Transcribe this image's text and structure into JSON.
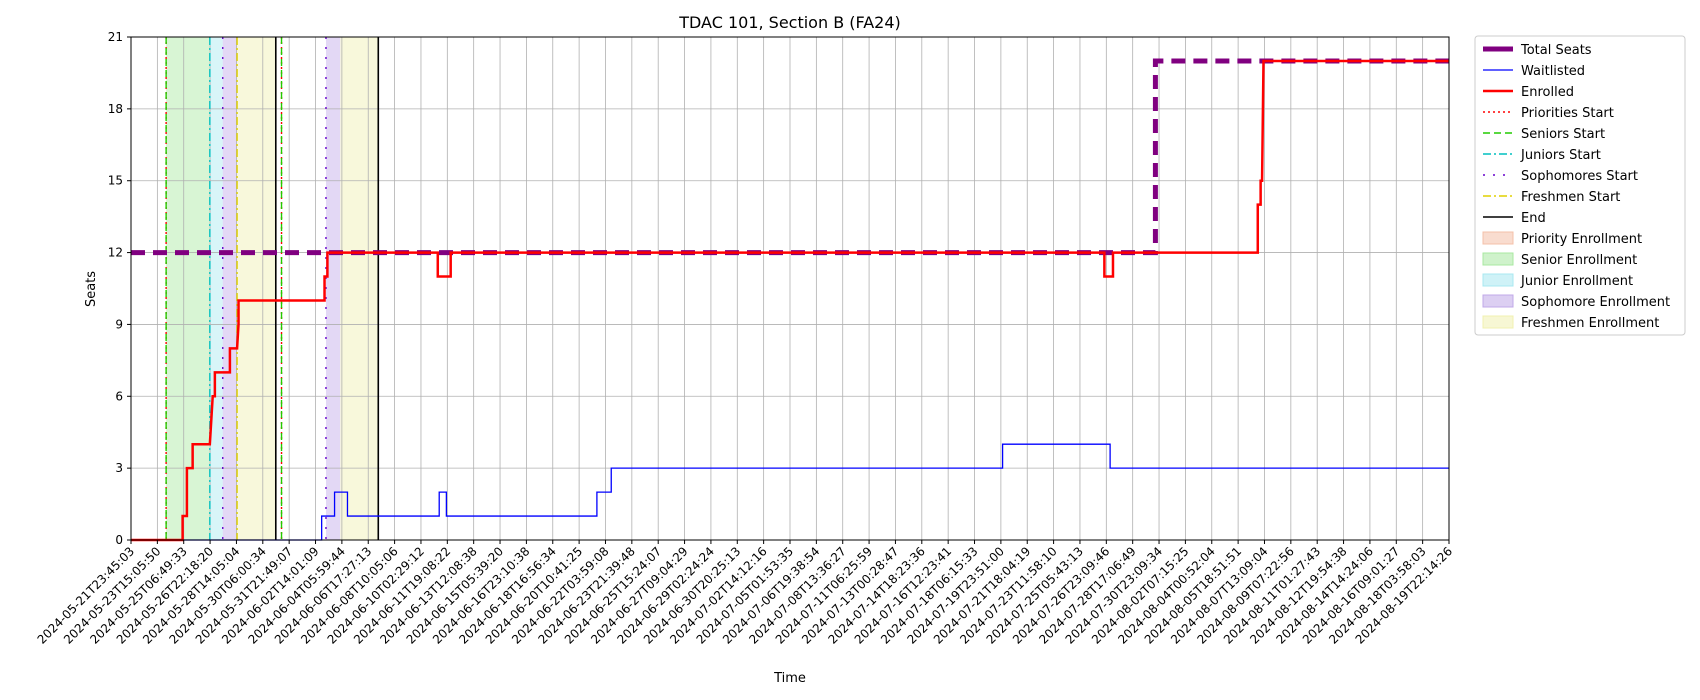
{
  "chart_data": {
    "type": "line",
    "title": "TDAC 101, Section B (FA24)",
    "xlabel": "Time",
    "ylabel": "Seats",
    "ylim": [
      0,
      21
    ],
    "yticks": [
      0,
      3,
      6,
      9,
      12,
      15,
      18,
      21
    ],
    "x_range_days": [
      0,
      91.94
    ],
    "grid": true,
    "legend_position": "outside-right",
    "x_ticks": [
      "2024-05-21T23:45:03",
      "2024-05-23T15:05:50",
      "2024-05-25T06:49:33",
      "2024-05-26T22:18:20",
      "2024-05-28T14:05:04",
      "2024-05-30T06:00:34",
      "2024-05-31T21:49:07",
      "2024-06-02T14:01:09",
      "2024-06-04T05:59:44",
      "2024-06-06T17:27:13",
      "2024-06-08T10:05:06",
      "2024-06-10T02:29:12",
      "2024-06-11T19:08:22",
      "2024-06-13T12:08:38",
      "2024-06-15T05:39:20",
      "2024-06-16T23:10:38",
      "2024-06-18T16:56:34",
      "2024-06-20T10:41:25",
      "2024-06-22T03:59:08",
      "2024-06-23T21:39:48",
      "2024-06-25T15:24:07",
      "2024-06-27T09:04:29",
      "2024-06-29T02:24:24",
      "2024-06-30T20:25:13",
      "2024-07-02T14:12:16",
      "2024-07-05T01:53:35",
      "2024-07-06T19:38:54",
      "2024-07-08T13:36:27",
      "2024-07-11T06:25:59",
      "2024-07-13T00:28:47",
      "2024-07-14T18:23:36",
      "2024-07-16T12:23:41",
      "2024-07-18T06:15:33",
      "2024-07-19T23:51:00",
      "2024-07-21T18:04:19",
      "2024-07-23T11:58:10",
      "2024-07-25T05:43:13",
      "2024-07-26T23:09:46",
      "2024-07-28T17:06:49",
      "2024-07-30T23:09:34",
      "2024-08-02T07:15:25",
      "2024-08-04T00:52:04",
      "2024-08-05T18:51:51",
      "2024-08-07T13:09:04",
      "2024-08-09T07:22:56",
      "2024-08-11T01:27:43",
      "2024-08-12T19:54:38",
      "2024-08-14T14:24:06",
      "2024-08-16T09:01:27",
      "2024-08-18T03:58:03",
      "2024-08-19T22:14:26"
    ],
    "series": [
      {
        "name": "Total Seats",
        "color": "#800080",
        "style": "dashed",
        "points": [
          [
            0,
            12
          ],
          [
            71.46,
            12
          ],
          [
            71.46,
            20
          ],
          [
            91.94,
            20
          ]
        ]
      },
      {
        "name": "Waitlisted",
        "color": "#0000ff",
        "style": "solid",
        "points": [
          [
            0,
            0
          ],
          [
            13.3,
            0
          ],
          [
            13.3,
            1
          ],
          [
            14.2,
            1
          ],
          [
            14.2,
            2
          ],
          [
            15.1,
            2
          ],
          [
            15.1,
            1
          ],
          [
            21.5,
            1
          ],
          [
            21.5,
            2
          ],
          [
            22.0,
            2
          ],
          [
            22.0,
            1
          ],
          [
            32.5,
            1
          ],
          [
            32.5,
            2
          ],
          [
            33.5,
            2
          ],
          [
            33.5,
            3
          ],
          [
            60.8,
            3
          ],
          [
            60.8,
            4
          ],
          [
            68.3,
            4
          ],
          [
            68.3,
            3
          ],
          [
            91.94,
            3
          ]
        ]
      },
      {
        "name": "Enrolled",
        "color": "#ff0000",
        "style": "solid",
        "points": [
          [
            0,
            0
          ],
          [
            3.6,
            0
          ],
          [
            3.6,
            1
          ],
          [
            3.9,
            1
          ],
          [
            3.9,
            3
          ],
          [
            4.3,
            3
          ],
          [
            4.3,
            4
          ],
          [
            5.5,
            4
          ],
          [
            5.6,
            5
          ],
          [
            5.7,
            6
          ],
          [
            5.85,
            6
          ],
          [
            5.85,
            7
          ],
          [
            6.9,
            7
          ],
          [
            6.9,
            8
          ],
          [
            7.4,
            8
          ],
          [
            7.5,
            9
          ],
          [
            7.5,
            10
          ],
          [
            13.5,
            10
          ],
          [
            13.5,
            11
          ],
          [
            13.7,
            11
          ],
          [
            13.7,
            12
          ],
          [
            21.4,
            12
          ],
          [
            21.4,
            11
          ],
          [
            22.3,
            11
          ],
          [
            22.3,
            12
          ],
          [
            67.9,
            12
          ],
          [
            67.9,
            11
          ],
          [
            68.5,
            11
          ],
          [
            68.5,
            12
          ],
          [
            78.6,
            12
          ],
          [
            78.6,
            14
          ],
          [
            78.8,
            14
          ],
          [
            78.8,
            15
          ],
          [
            78.9,
            15
          ],
          [
            79.0,
            20
          ],
          [
            91.94,
            20
          ]
        ]
      }
    ],
    "markers": [
      {
        "name": "Priorities Start",
        "color": "#ff0000",
        "style": "dotted",
        "x": [
          2.45,
          10.5
        ]
      },
      {
        "name": "Seniors Start",
        "color": "#22cc00",
        "style": "dashed",
        "x": [
          2.45,
          10.5
        ]
      },
      {
        "name": "Juniors Start",
        "color": "#00bfbf",
        "style": "dashdot",
        "x": [
          5.5
        ]
      },
      {
        "name": "Sophomores Start",
        "color": "#6600cc",
        "style": "loosedot",
        "x": [
          6.4,
          13.6
        ]
      },
      {
        "name": "Freshmen Start",
        "color": "#e0d000",
        "style": "dashdot",
        "x": [
          7.4
        ]
      },
      {
        "name": "End",
        "color": "#000000",
        "style": "solid",
        "x": [
          10.1,
          17.25
        ]
      }
    ],
    "bands": [
      {
        "name": "Priority Enrollment",
        "color": "#f4c0a8",
        "spans": []
      },
      {
        "name": "Senior Enrollment",
        "color": "#a8e8a0",
        "spans": [
          [
            2.45,
            5.5
          ]
        ]
      },
      {
        "name": "Junior Enrollment",
        "color": "#a8e8f0",
        "spans": [
          [
            5.5,
            6.4
          ]
        ]
      },
      {
        "name": "Sophomore Enrollment",
        "color": "#c0a8e8",
        "spans": [
          [
            6.4,
            7.4
          ],
          [
            13.6,
            14.6
          ]
        ]
      },
      {
        "name": "Freshmen Enrollment",
        "color": "#f0f0b0",
        "spans": [
          [
            7.4,
            10.1
          ],
          [
            14.6,
            17.25
          ]
        ]
      }
    ]
  }
}
